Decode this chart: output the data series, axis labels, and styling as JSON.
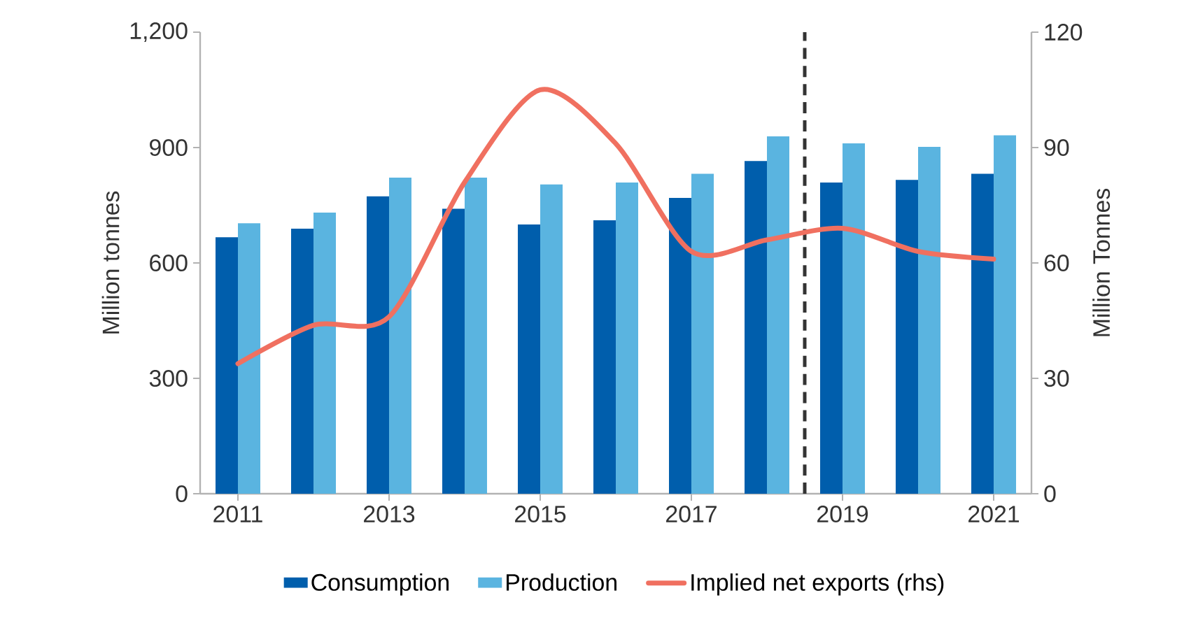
{
  "chart_data": {
    "type": "bar",
    "x": [
      2011,
      2012,
      2013,
      2014,
      2015,
      2016,
      2017,
      2018,
      2019,
      2020,
      2021
    ],
    "xlim": [
      2010.5,
      2021.5
    ],
    "xticks": [
      2011,
      2013,
      2015,
      2017,
      2019,
      2021
    ],
    "ylim": [
      0,
      1200
    ],
    "yticks": [
      0,
      300,
      600,
      900,
      {
        "value": 1200,
        "label": "1,200"
      }
    ],
    "y2lim": [
      0,
      120
    ],
    "y2ticks": [
      0,
      30,
      60,
      90,
      120
    ],
    "ylabel": "Million tonnes",
    "y2label": "Million  Tonnes",
    "legend": "bottom",
    "grid": false,
    "series": [
      {
        "name": "Consumption",
        "color": "#005eac",
        "values": [
          667,
          689,
          773,
          741,
          700,
          711,
          769,
          865,
          809,
          816,
          832
        ]
      },
      {
        "name": "Production",
        "color": "#5ab4e0",
        "values": [
          703,
          731,
          822,
          822,
          804,
          809,
          832,
          929,
          911,
          902,
          932
        ]
      },
      {
        "name": "Implied net exports (rhs)",
        "type": "line",
        "axis": "y2",
        "color": "#f07060",
        "line_style": "solid",
        "marker": "none",
        "values": [
          33.8,
          43.8,
          46,
          81,
          105,
          91,
          63,
          66,
          69,
          63,
          61
        ]
      }
    ],
    "ref_lines": [
      {
        "axis": "x",
        "value": 2018.5,
        "color": "#333333",
        "line_style": "dashed"
      }
    ]
  }
}
